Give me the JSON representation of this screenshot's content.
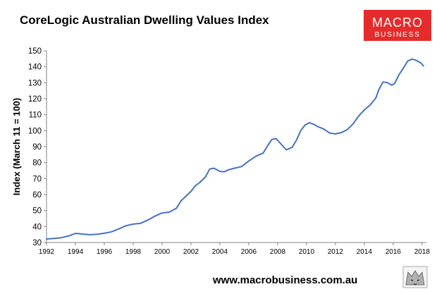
{
  "header": {
    "logo_line1": "MACRO",
    "logo_line2": "BUSINESS"
  },
  "footer": {
    "url": "www.macrobusiness.com.au"
  },
  "colors": {
    "line": "#4472C4",
    "axis": "#868686",
    "logo_bg": "#E52B2B"
  },
  "icons": [
    "wolf-mascot-icon"
  ],
  "chart_data": {
    "type": "line",
    "title": "CoreLogic Australian Dwelling Values Index",
    "ylabel": "Index (March 11 = 100)",
    "xlabel": "",
    "ylim": [
      30,
      150
    ],
    "xlim": [
      1992,
      2018.3
    ],
    "yticks": [
      30,
      40,
      50,
      60,
      70,
      80,
      90,
      100,
      110,
      120,
      130,
      140,
      150
    ],
    "xticks": [
      "1992",
      "1994",
      "1996",
      "1998",
      "2000",
      "2002",
      "2004",
      "2006",
      "2008",
      "2010",
      "2012",
      "2014",
      "2016",
      "2018"
    ],
    "grid": false,
    "legend": "none",
    "series": [
      {
        "x": [
          1992.0,
          1992.5,
          1993.0,
          1993.5,
          1994.0,
          1994.3,
          1994.6,
          1995.0,
          1995.5,
          1996.0,
          1996.5,
          1997.0,
          1997.5,
          1998.0,
          1998.5,
          1999.0,
          1999.5,
          2000.0,
          2000.5,
          2001.0,
          2001.3,
          2001.6,
          2002.0,
          2002.3,
          2002.6,
          2003.0,
          2003.3,
          2003.6,
          2004.0,
          2004.3,
          2004.6,
          2005.0,
          2005.5,
          2006.0,
          2006.5,
          2007.0,
          2007.3,
          2007.6,
          2007.9,
          2008.2,
          2008.6,
          2009.0,
          2009.3,
          2009.6,
          2009.9,
          2010.2,
          2010.5,
          2010.8,
          2011.2,
          2011.6,
          2012.0,
          2012.4,
          2012.8,
          2013.2,
          2013.6,
          2014.0,
          2014.4,
          2014.8,
          2015.0,
          2015.3,
          2015.6,
          2015.9,
          2016.1,
          2016.4,
          2016.7,
          2017.0,
          2017.3,
          2017.6,
          2017.9,
          2018.1
        ],
        "values": [
          32.2,
          32.5,
          33.0,
          34.0,
          35.7,
          35.5,
          35.2,
          34.9,
          35.2,
          35.8,
          36.7,
          38.5,
          40.5,
          41.5,
          42.0,
          44.0,
          46.5,
          48.5,
          49.0,
          51.5,
          56.0,
          58.5,
          62.0,
          65.5,
          67.5,
          71.0,
          76.0,
          76.5,
          74.5,
          74.3,
          75.5,
          76.5,
          77.5,
          81.0,
          84.0,
          86.0,
          90.5,
          94.5,
          95.0,
          92.0,
          88.0,
          89.5,
          94.0,
          100.0,
          103.5,
          105.0,
          104.0,
          102.5,
          101.0,
          98.5,
          98.0,
          98.8,
          100.5,
          104.0,
          109.0,
          113.0,
          116.0,
          120.5,
          125.5,
          130.5,
          130.0,
          128.5,
          129.5,
          135.0,
          139.0,
          143.5,
          144.8,
          144.0,
          142.5,
          140.5
        ]
      }
    ]
  }
}
